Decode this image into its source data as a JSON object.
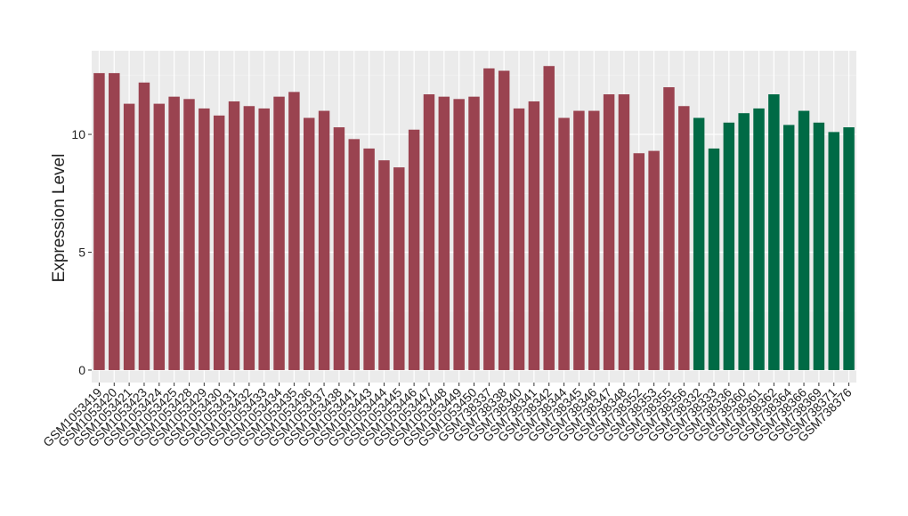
{
  "chart_data": {
    "type": "bar",
    "y_label": "Expression Level",
    "categories": [
      "GSM1053419",
      "GSM1053420",
      "GSM1053421",
      "GSM1053423",
      "GSM1053424",
      "GSM1053425",
      "GSM1053428",
      "GSM1053429",
      "GSM1053430",
      "GSM1053431",
      "GSM1053432",
      "GSM1053433",
      "GSM1053434",
      "GSM1053435",
      "GSM1053436",
      "GSM1053437",
      "GSM1053438",
      "GSM1053441",
      "GSM1053443",
      "GSM1053444",
      "GSM1053445",
      "GSM1053446",
      "GSM1053447",
      "GSM1053448",
      "GSM1053449",
      "GSM1053450",
      "GSM738337",
      "GSM738338",
      "GSM738340",
      "GSM738341",
      "GSM738342",
      "GSM738344",
      "GSM738345",
      "GSM738346",
      "GSM738347",
      "GSM738348",
      "GSM738352",
      "GSM738353",
      "GSM738355",
      "GSM738356",
      "GSM738332",
      "GSM738333",
      "GSM738336",
      "GSM738360",
      "GSM738361",
      "GSM738362",
      "GSM738364",
      "GSM738366",
      "GSM738369",
      "GSM738371",
      "GSM738376"
    ],
    "values": [
      12.6,
      12.6,
      11.3,
      12.2,
      11.3,
      11.6,
      11.5,
      11.1,
      10.8,
      11.4,
      11.2,
      11.1,
      11.6,
      11.8,
      10.7,
      11.0,
      10.3,
      9.8,
      9.4,
      8.9,
      8.6,
      10.2,
      11.7,
      11.6,
      11.5,
      11.6,
      12.8,
      12.7,
      11.1,
      11.4,
      12.9,
      10.7,
      11.0,
      11.0,
      11.7,
      11.7,
      9.2,
      9.3,
      12.0,
      11.2,
      10.7,
      9.4,
      10.5,
      10.9,
      11.1,
      11.7,
      10.4,
      11.0,
      10.5,
      10.1,
      10.3
    ],
    "colors": [
      "#9a4350",
      "#9a4350",
      "#9a4350",
      "#9a4350",
      "#9a4350",
      "#9a4350",
      "#9a4350",
      "#9a4350",
      "#9a4350",
      "#9a4350",
      "#9a4350",
      "#9a4350",
      "#9a4350",
      "#9a4350",
      "#9a4350",
      "#9a4350",
      "#9a4350",
      "#9a4350",
      "#9a4350",
      "#9a4350",
      "#9a4350",
      "#9a4350",
      "#9a4350",
      "#9a4350",
      "#9a4350",
      "#9a4350",
      "#9a4350",
      "#9a4350",
      "#9a4350",
      "#9a4350",
      "#9a4350",
      "#9a4350",
      "#9a4350",
      "#9a4350",
      "#9a4350",
      "#9a4350",
      "#9a4350",
      "#9a4350",
      "#9a4350",
      "#9a4350",
      "#006a45",
      "#006a45",
      "#006a45",
      "#006a45",
      "#006a45",
      "#006a45",
      "#006a45",
      "#006a45",
      "#006a45",
      "#006a45",
      "#006a45"
    ],
    "ylim": [
      -0.53,
      13.55
    ],
    "yticks": [
      0,
      5,
      10
    ],
    "minor_yticks": [
      2.5,
      7.5,
      12.5
    ],
    "grid": true
  }
}
